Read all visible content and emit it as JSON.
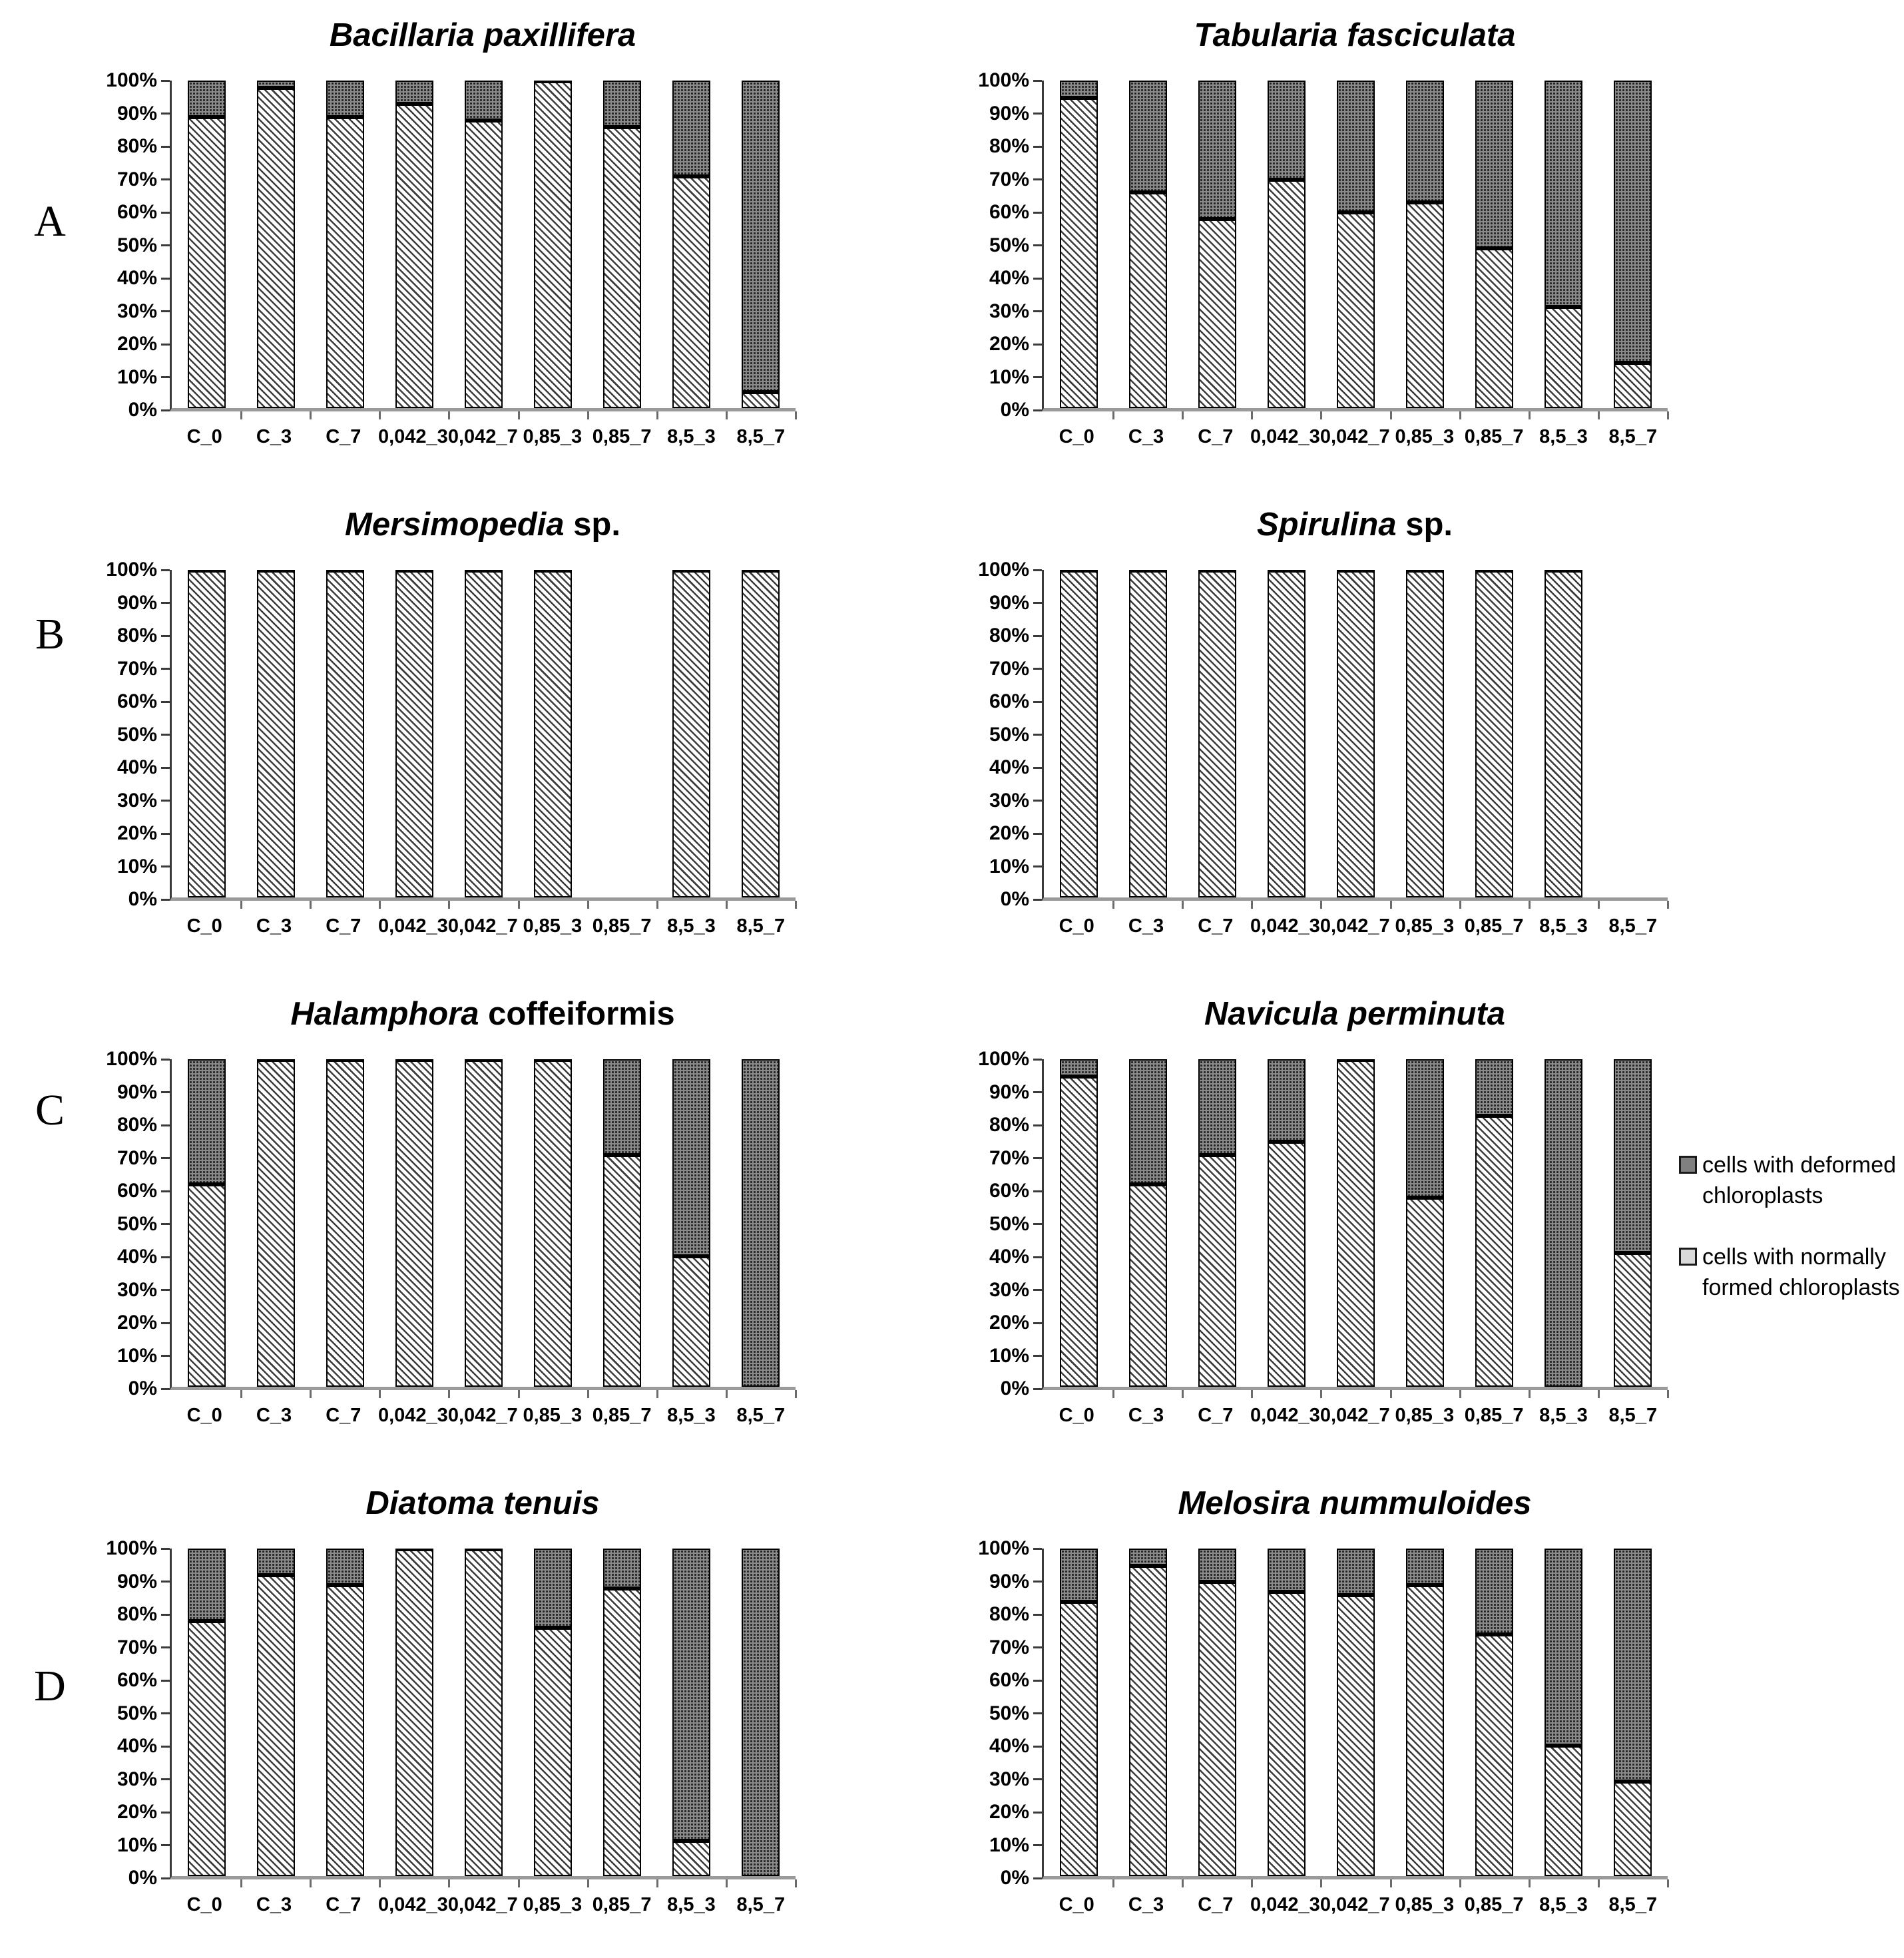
{
  "figure": {
    "row_labels": [
      "A",
      "B",
      "C",
      "D"
    ],
    "y_ticks": [
      "100%",
      "90%",
      "80%",
      "70%",
      "60%",
      "50%",
      "40%",
      "30%",
      "20%",
      "10%",
      "0%"
    ],
    "categories": [
      "C_0",
      "C_3",
      "C_7",
      "0,042_3",
      "0,042_7",
      "0,85_3",
      "0,85_7",
      "8,5_3",
      "8,5_7"
    ],
    "legend": [
      {
        "label": "cells with deformed chloroplasts",
        "swatch": "#808080",
        "pattern": "dark-dots"
      },
      {
        "label": "cells with normally formed chloroplasts",
        "swatch": "#d9d9d9",
        "pattern": "light-hatch"
      }
    ],
    "colors": {
      "normal_bg": "#ffffff",
      "normal_hatch": "#3c3c3c",
      "deformed_fill": "#8a8a8a",
      "deformed_dot": "#252525",
      "legend_deformed_swatch": "#808080",
      "legend_normal_swatch": "#d9d9d9",
      "axis_dark": "#3a3a3a",
      "axis_gray": "#9a9a9a"
    }
  },
  "chart_data": [
    {
      "id": "bacillaria-paxillifera",
      "type": "bar",
      "stacked": true,
      "row": "A",
      "title": "Bacillaria paxillifera",
      "title_em": "Bacillaria paxillifera",
      "title_plain": "",
      "xlabel": "",
      "ylabel": "",
      "ylim": [
        0,
        100
      ],
      "categories": [
        "C_0",
        "C_3",
        "C_7",
        "0,042_3",
        "0,042_7",
        "0,85_3",
        "0,85_7",
        "8,5_3",
        "8,5_7"
      ],
      "series": [
        {
          "name": "cells with normally formed chloroplasts",
          "values": [
            89,
            98,
            89,
            93,
            88,
            100,
            86,
            71,
            5
          ]
        },
        {
          "name": "cells with deformed chloroplasts",
          "values": [
            11,
            2,
            11,
            7,
            12,
            0,
            14,
            29,
            95
          ]
        }
      ]
    },
    {
      "id": "tabularia-fasciculata",
      "type": "bar",
      "stacked": true,
      "row": "A",
      "title": "Tabularia fasciculata",
      "title_em": "Tabularia fasciculata",
      "title_plain": "",
      "xlabel": "",
      "ylabel": "",
      "ylim": [
        0,
        100
      ],
      "categories": [
        "C_0",
        "C_3",
        "C_7",
        "0,042_3",
        "0,042_7",
        "0,85_3",
        "0,85_7",
        "8,5_3",
        "8,5_7"
      ],
      "series": [
        {
          "name": "cells with normally formed chloroplasts",
          "values": [
            95,
            66,
            58,
            70,
            60,
            63,
            49,
            31,
            14
          ]
        },
        {
          "name": "cells with deformed chloroplasts",
          "values": [
            5,
            34,
            42,
            30,
            40,
            37,
            51,
            69,
            86
          ]
        }
      ]
    },
    {
      "id": "mersimopedia-sp",
      "type": "bar",
      "stacked": true,
      "row": "B",
      "title": "Mersimopedia sp.",
      "title_em": "Mersimopedia",
      "title_plain": " sp.",
      "xlabel": "",
      "ylabel": "",
      "ylim": [
        0,
        100
      ],
      "categories": [
        "C_0",
        "C_3",
        "C_7",
        "0,042_3",
        "0,042_7",
        "0,85_3",
        "0,85_7",
        "8,5_3",
        "8,5_7"
      ],
      "series": [
        {
          "name": "cells with normally formed chloroplasts",
          "values": [
            100,
            100,
            100,
            100,
            100,
            100,
            null,
            100,
            100
          ]
        },
        {
          "name": "cells with deformed chloroplasts",
          "values": [
            0,
            0,
            0,
            0,
            0,
            0,
            null,
            0,
            0
          ]
        }
      ]
    },
    {
      "id": "spirulina-sp",
      "type": "bar",
      "stacked": true,
      "row": "B",
      "title": "Spirulina sp.",
      "title_em": "Spirulina",
      "title_plain": " sp.",
      "xlabel": "",
      "ylabel": "",
      "ylim": [
        0,
        100
      ],
      "categories": [
        "C_0",
        "C_3",
        "C_7",
        "0,042_3",
        "0,042_7",
        "0,85_3",
        "0,85_7",
        "8,5_3",
        "8,5_7"
      ],
      "series": [
        {
          "name": "cells with normally formed chloroplasts",
          "values": [
            100,
            100,
            100,
            100,
            100,
            100,
            100,
            100,
            null
          ]
        },
        {
          "name": "cells with deformed chloroplasts",
          "values": [
            0,
            0,
            0,
            0,
            0,
            0,
            0,
            0,
            null
          ]
        }
      ]
    },
    {
      "id": "halamphora-coffeiformis",
      "type": "bar",
      "stacked": true,
      "row": "C",
      "title": "Halamphora coffeiformis",
      "title_em": "Halamphora",
      "title_plain": " coffeiformis",
      "xlabel": "",
      "ylabel": "",
      "ylim": [
        0,
        100
      ],
      "categories": [
        "C_0",
        "C_3",
        "C_7",
        "0,042_3",
        "0,042_7",
        "0,85_3",
        "0,85_7",
        "8,5_3",
        "8,5_7"
      ],
      "series": [
        {
          "name": "cells with normally formed chloroplasts",
          "values": [
            62,
            100,
            100,
            100,
            100,
            100,
            71,
            40,
            0
          ]
        },
        {
          "name": "cells with deformed chloroplasts",
          "values": [
            38,
            0,
            0,
            0,
            0,
            0,
            29,
            60,
            100
          ]
        }
      ]
    },
    {
      "id": "navicula-perminuta",
      "type": "bar",
      "stacked": true,
      "row": "C",
      "title": "Navicula perminuta",
      "title_em": "Navicula perminuta",
      "title_plain": "",
      "xlabel": "",
      "ylabel": "",
      "ylim": [
        0,
        100
      ],
      "categories": [
        "C_0",
        "C_3",
        "C_7",
        "0,042_3",
        "0,042_7",
        "0,85_3",
        "0,85_7",
        "8,5_3",
        "8,5_7"
      ],
      "series": [
        {
          "name": "cells with normally formed chloroplasts",
          "values": [
            95,
            62,
            71,
            75,
            100,
            58,
            83,
            0,
            41
          ]
        },
        {
          "name": "cells with deformed chloroplasts",
          "values": [
            5,
            38,
            29,
            25,
            0,
            42,
            17,
            100,
            59
          ]
        }
      ]
    },
    {
      "id": "diatoma-tenuis",
      "type": "bar",
      "stacked": true,
      "row": "D",
      "title": "Diatoma tenuis",
      "title_em": "Diatoma tenuis",
      "title_plain": "",
      "xlabel": "",
      "ylabel": "",
      "ylim": [
        0,
        100
      ],
      "categories": [
        "C_0",
        "C_3",
        "C_7",
        "0,042_3",
        "0,042_7",
        "0,85_3",
        "0,85_7",
        "8,5_3",
        "8,5_7"
      ],
      "series": [
        {
          "name": "cells with normally formed chloroplasts",
          "values": [
            78,
            92,
            89,
            100,
            100,
            76,
            88,
            11,
            0
          ]
        },
        {
          "name": "cells with deformed chloroplasts",
          "values": [
            22,
            8,
            11,
            0,
            0,
            24,
            12,
            89,
            100
          ]
        }
      ]
    },
    {
      "id": "melosira-nummuloides",
      "type": "bar",
      "stacked": true,
      "row": "D",
      "title": "Melosira nummuloides",
      "title_em": "Melosira nummuloides",
      "title_plain": "",
      "xlabel": "",
      "ylabel": "",
      "ylim": [
        0,
        100
      ],
      "categories": [
        "C_0",
        "C_3",
        "C_7",
        "0,042_3",
        "0,042_7",
        "0,85_3",
        "0,85_7",
        "8,5_3",
        "8,5_7"
      ],
      "series": [
        {
          "name": "cells with normally formed chloroplasts",
          "values": [
            84,
            95,
            90,
            87,
            86,
            89,
            74,
            40,
            29
          ]
        },
        {
          "name": "cells with deformed chloroplasts",
          "values": [
            16,
            5,
            10,
            13,
            14,
            11,
            26,
            60,
            71
          ]
        }
      ]
    }
  ]
}
